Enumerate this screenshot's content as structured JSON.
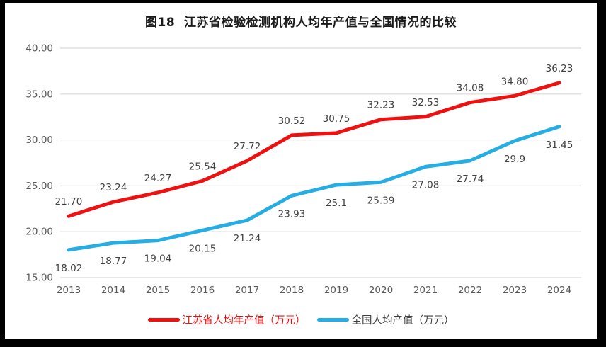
{
  "title": "图18  江苏省检验检测机构人均年产值与全国情况的比较",
  "chart_data": {
    "type": "line",
    "title": "图18  江苏省检验检测机构人均年产值与全国情况的比较",
    "categories": [
      "2013",
      "2014",
      "2015",
      "2016",
      "2017",
      "2018",
      "2019",
      "2020",
      "2021",
      "2022",
      "2023",
      "2024"
    ],
    "series": [
      {
        "name": "江苏省人均年产值（万元）",
        "color": "#ed1111",
        "values": [
          21.7,
          23.24,
          24.27,
          25.54,
          27.72,
          30.52,
          30.75,
          32.23,
          32.53,
          34.08,
          34.8,
          36.23
        ],
        "point_labels": [
          "21.70",
          "23.24",
          "24.27",
          "25.54",
          "27.72",
          "30.52",
          "30.75",
          "32.23",
          "32.53",
          "34.08",
          "34.80",
          "36.23"
        ],
        "legend_text_color": "#ed1111"
      },
      {
        "name": "全国人均产值（万元）",
        "color": "#25ade4",
        "values": [
          18.02,
          18.77,
          19.04,
          20.15,
          21.24,
          23.93,
          25.1,
          25.39,
          27.08,
          27.74,
          29.9,
          31.45
        ],
        "point_labels": [
          "18.02",
          "18.77",
          "19.04",
          "20.15",
          "21.24",
          "23.93",
          "25.1",
          "25.39",
          "27.08",
          "27.74",
          "29.9",
          "31.45"
        ],
        "legend_text_color": "#3f3f3f"
      }
    ],
    "xlabel": "",
    "ylabel": "",
    "ylim": [
      15,
      40
    ],
    "yticks": [
      "40.00",
      "35.00",
      "30.00",
      "25.00",
      "20.00",
      "15.00"
    ],
    "grid": true,
    "legend_position": "bottom",
    "colors": {
      "gridline": "#d9d9d9",
      "tick_text": "#595959",
      "data_label": "#404040",
      "title_text": "#1a1a1a",
      "frame": "#000000",
      "background": "#ffffff"
    }
  }
}
